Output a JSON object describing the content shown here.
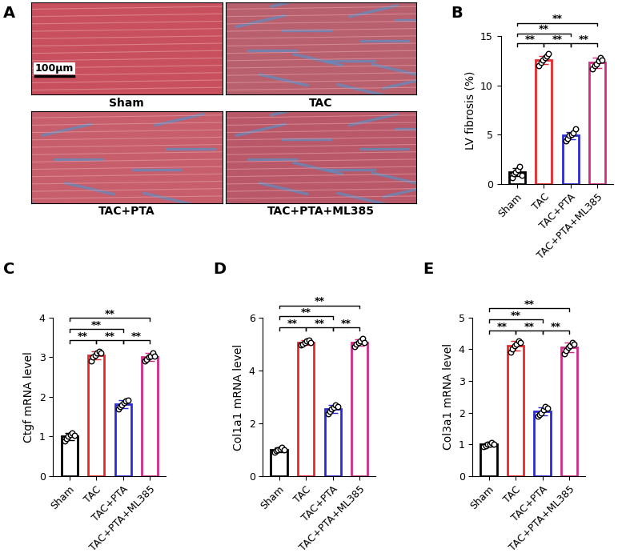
{
  "panel_A": {
    "panel": "A",
    "images": [
      {
        "label": "Sham"
      },
      {
        "label": "TAC"
      },
      {
        "label": "TAC+PTA"
      },
      {
        "label": "TAC+PTA+ML385"
      }
    ],
    "scale_bar": "100μm"
  },
  "chart_data": [
    {
      "panel": "B",
      "type": "bar",
      "y_label": "LV fibrosis (%)",
      "categories": [
        "Sham",
        "TAC",
        "TAC+PTA",
        "TAC+PTA+ML385"
      ],
      "values": [
        1.2,
        12.6,
        4.9,
        12.3
      ],
      "errors": [
        0.4,
        0.4,
        0.4,
        0.5
      ],
      "points": [
        [
          0.6,
          1.0,
          1.2,
          1.4,
          1.8,
          0.9
        ],
        [
          12.0,
          12.3,
          12.6,
          12.8,
          13.0,
          13.2
        ],
        [
          4.4,
          4.6,
          4.9,
          5.0,
          5.2,
          5.6
        ],
        [
          11.7,
          12.0,
          12.2,
          12.5,
          12.8,
          12.6
        ]
      ],
      "colors": [
        "#000000",
        "#e8282b",
        "#2b2bd6",
        "#d12b86"
      ],
      "ylim": [
        0,
        15
      ],
      "yticks": [
        0,
        5,
        10,
        15
      ],
      "comparisons": [
        {
          "pair": [
            0,
            1
          ],
          "label": "**"
        },
        {
          "pair": [
            1,
            2
          ],
          "label": "**"
        },
        {
          "pair": [
            2,
            3
          ],
          "label": "**"
        },
        {
          "pair": [
            0,
            2
          ],
          "label": "**"
        },
        {
          "pair": [
            0,
            3
          ],
          "label": "**"
        }
      ]
    },
    {
      "panel": "C",
      "type": "bar",
      "y_label": "Ctgf mRNA level",
      "categories": [
        "Sham",
        "TAC",
        "TAC+PTA",
        "TAC+PTA+ML385"
      ],
      "values": [
        1.0,
        3.05,
        1.82,
        3.0
      ],
      "errors": [
        0.1,
        0.1,
        0.1,
        0.1
      ],
      "points": [
        [
          0.88,
          0.95,
          1.0,
          1.05,
          1.1,
          1.02
        ],
        [
          2.9,
          3.0,
          3.05,
          3.1,
          3.15,
          3.1
        ],
        [
          1.7,
          1.75,
          1.8,
          1.85,
          1.9,
          1.92
        ],
        [
          2.9,
          2.95,
          3.0,
          3.02,
          3.1,
          3.03
        ]
      ],
      "colors": [
        "#000000",
        "#e8282b",
        "#2b2bd6",
        "#d12b86"
      ],
      "ylim": [
        0,
        4
      ],
      "yticks": [
        0,
        1,
        2,
        3,
        4
      ],
      "comparisons": [
        {
          "pair": [
            0,
            1
          ],
          "label": "**"
        },
        {
          "pair": [
            1,
            2
          ],
          "label": "**"
        },
        {
          "pair": [
            2,
            3
          ],
          "label": "**"
        },
        {
          "pair": [
            0,
            2
          ],
          "label": "**"
        },
        {
          "pair": [
            0,
            3
          ],
          "label": "**"
        }
      ]
    },
    {
      "panel": "D",
      "type": "bar",
      "y_label": "Col1a1 mRNA level",
      "categories": [
        "Sham",
        "TAC",
        "TAC+PTA",
        "TAC+PTA+ML385"
      ],
      "values": [
        1.0,
        5.05,
        2.55,
        5.05
      ],
      "errors": [
        0.08,
        0.1,
        0.15,
        0.12
      ],
      "points": [
        [
          0.92,
          0.96,
          1.0,
          1.03,
          1.08,
          1.0
        ],
        [
          4.95,
          5.0,
          5.05,
          5.1,
          5.15,
          5.05
        ],
        [
          2.35,
          2.45,
          2.55,
          2.6,
          2.7,
          2.62
        ],
        [
          4.9,
          5.0,
          5.05,
          5.1,
          5.2,
          5.05
        ]
      ],
      "colors": [
        "#000000",
        "#e8282b",
        "#2b2bd6",
        "#d12b86"
      ],
      "ylim": [
        0,
        6
      ],
      "yticks": [
        0,
        2,
        4,
        6
      ],
      "comparisons": [
        {
          "pair": [
            0,
            1
          ],
          "label": "**"
        },
        {
          "pair": [
            1,
            2
          ],
          "label": "**"
        },
        {
          "pair": [
            2,
            3
          ],
          "label": "**"
        },
        {
          "pair": [
            0,
            2
          ],
          "label": "**"
        },
        {
          "pair": [
            0,
            3
          ],
          "label": "**"
        }
      ]
    },
    {
      "panel": "E",
      "type": "bar",
      "y_label": "Col3a1 mRNA level",
      "categories": [
        "Sham",
        "TAC",
        "TAC+PTA",
        "TAC+PTA+ML385"
      ],
      "values": [
        1.0,
        4.1,
        2.05,
        4.05
      ],
      "errors": [
        0.06,
        0.15,
        0.12,
        0.15
      ],
      "points": [
        [
          0.93,
          0.97,
          1.0,
          1.02,
          1.06,
          1.0
        ],
        [
          3.9,
          4.0,
          4.1,
          4.15,
          4.25,
          4.2
        ],
        [
          1.9,
          1.95,
          2.0,
          2.1,
          2.2,
          2.15
        ],
        [
          3.85,
          3.95,
          4.05,
          4.1,
          4.2,
          4.15
        ]
      ],
      "colors": [
        "#000000",
        "#e8282b",
        "#2b2bd6",
        "#d12b86"
      ],
      "ylim": [
        0,
        5
      ],
      "yticks": [
        0,
        1,
        2,
        3,
        4,
        5
      ],
      "comparisons": [
        {
          "pair": [
            0,
            1
          ],
          "label": "**"
        },
        {
          "pair": [
            1,
            2
          ],
          "label": "**"
        },
        {
          "pair": [
            2,
            3
          ],
          "label": "**"
        },
        {
          "pair": [
            0,
            2
          ],
          "label": "**"
        },
        {
          "pair": [
            0,
            3
          ],
          "label": "**"
        }
      ]
    }
  ]
}
